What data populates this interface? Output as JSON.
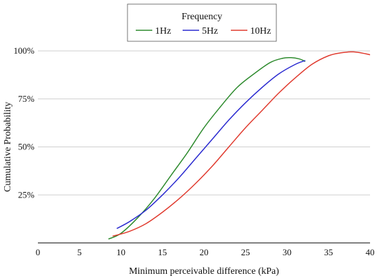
{
  "chart_data": {
    "type": "line",
    "xlabel": "Minimum perceivable difference (kPa)",
    "ylabel": "Cumulative Probability",
    "xlim": [
      0,
      40
    ],
    "ylim": [
      0,
      1
    ],
    "x_ticks": [
      0,
      5,
      10,
      15,
      20,
      25,
      30,
      35,
      40
    ],
    "x_tick_labels": [
      "0",
      "5",
      "10",
      "15",
      "20",
      "25",
      "30",
      "35",
      "40"
    ],
    "y_ticks": [
      0.25,
      0.5,
      0.75,
      1.0
    ],
    "y_tick_labels": [
      "25%",
      "50%",
      "75%",
      "100%"
    ],
    "grid": "horizontal",
    "legend": {
      "title": "Frequency",
      "placement": "top-center"
    },
    "series": [
      {
        "name": "1Hz",
        "color": "#2e8b2e",
        "x": [
          8.5,
          10,
          12,
          14,
          16,
          18,
          20,
          22,
          24,
          26,
          28,
          29.5,
          30.5,
          31.5,
          32.2
        ],
        "y": [
          0.02,
          0.05,
          0.13,
          0.23,
          0.35,
          0.47,
          0.6,
          0.71,
          0.81,
          0.88,
          0.94,
          0.962,
          0.965,
          0.958,
          0.945
        ]
      },
      {
        "name": "5Hz",
        "color": "#2a2ad0",
        "x": [
          9.5,
          11,
          13,
          15,
          17,
          19,
          21,
          23,
          25,
          27,
          29,
          31,
          32.2
        ],
        "y": [
          0.075,
          0.11,
          0.17,
          0.25,
          0.34,
          0.44,
          0.54,
          0.64,
          0.73,
          0.81,
          0.88,
          0.93,
          0.95
        ]
      },
      {
        "name": "10Hz",
        "color": "#e03a2e",
        "x": [
          9,
          11,
          13,
          15,
          17,
          19,
          21,
          23,
          25,
          27,
          29,
          31,
          33,
          35,
          36.5,
          38,
          39.5,
          40
        ],
        "y": [
          0.035,
          0.06,
          0.1,
          0.16,
          0.23,
          0.31,
          0.4,
          0.5,
          0.6,
          0.69,
          0.78,
          0.86,
          0.93,
          0.975,
          0.99,
          0.995,
          0.985,
          0.98
        ]
      }
    ]
  }
}
